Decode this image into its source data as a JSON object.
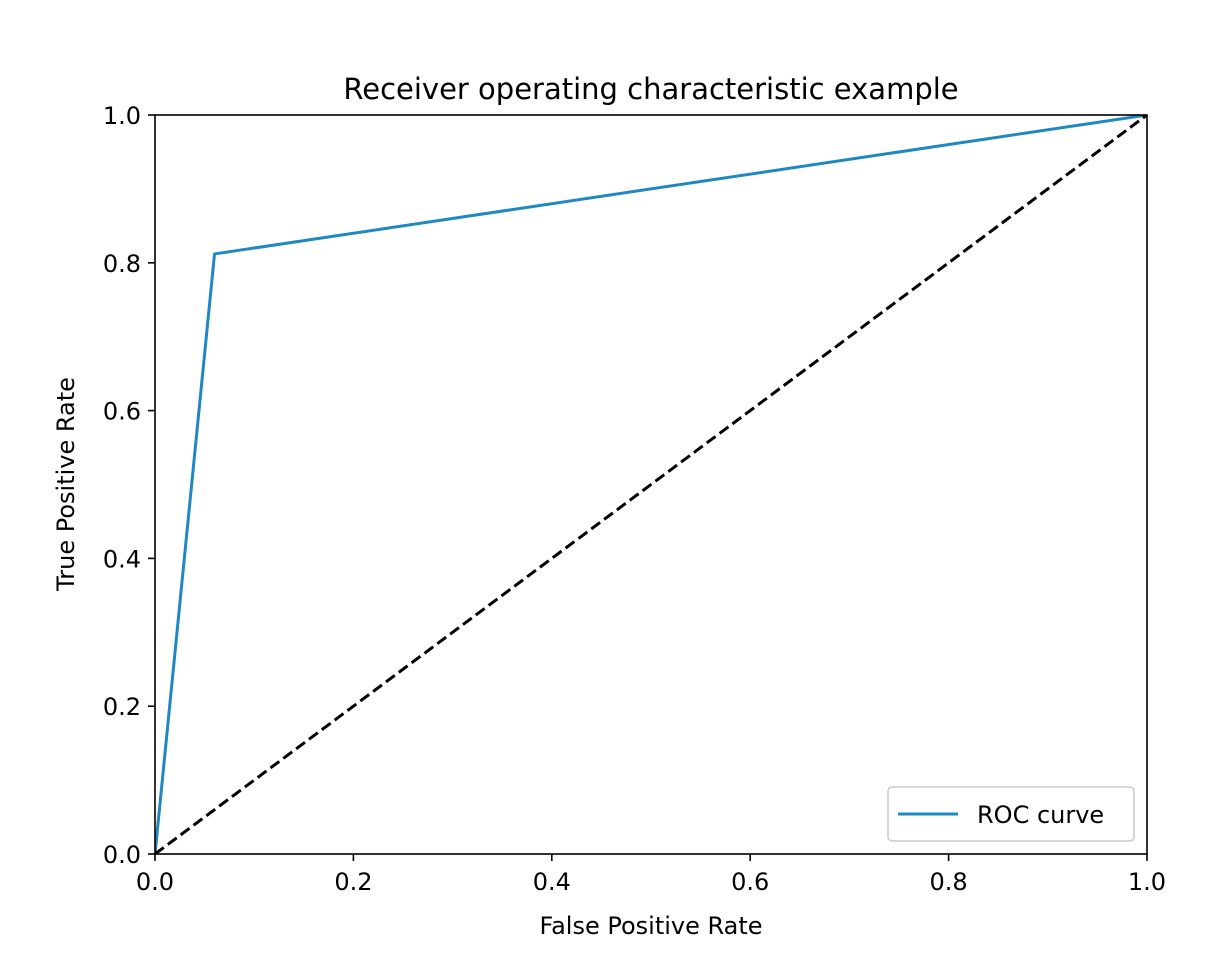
{
  "chart_data": {
    "type": "line",
    "title": "Receiver operating characteristic example",
    "xlabel": "False Positive Rate",
    "ylabel": "True Positive Rate",
    "xlim": [
      0.0,
      1.0
    ],
    "ylim": [
      0.0,
      1.0
    ],
    "grid": false,
    "legend": {
      "location": "lower-right",
      "entries": [
        "ROC curve"
      ]
    },
    "x_ticks": [
      "0.0",
      "0.2",
      "0.4",
      "0.6",
      "0.8",
      "1.0"
    ],
    "y_ticks": [
      "0.0",
      "0.2",
      "0.4",
      "0.6",
      "0.8",
      "1.0"
    ],
    "series": [
      {
        "name": "ROC curve",
        "color": "#1f88c0",
        "style": "solid",
        "x": [
          0.0,
          0.06,
          1.0
        ],
        "y": [
          0.0,
          0.812,
          1.0
        ]
      },
      {
        "color": "#000000",
        "style": "dashed",
        "x": [
          0.0,
          1.0
        ],
        "y": [
          0.0,
          1.0
        ]
      }
    ]
  }
}
